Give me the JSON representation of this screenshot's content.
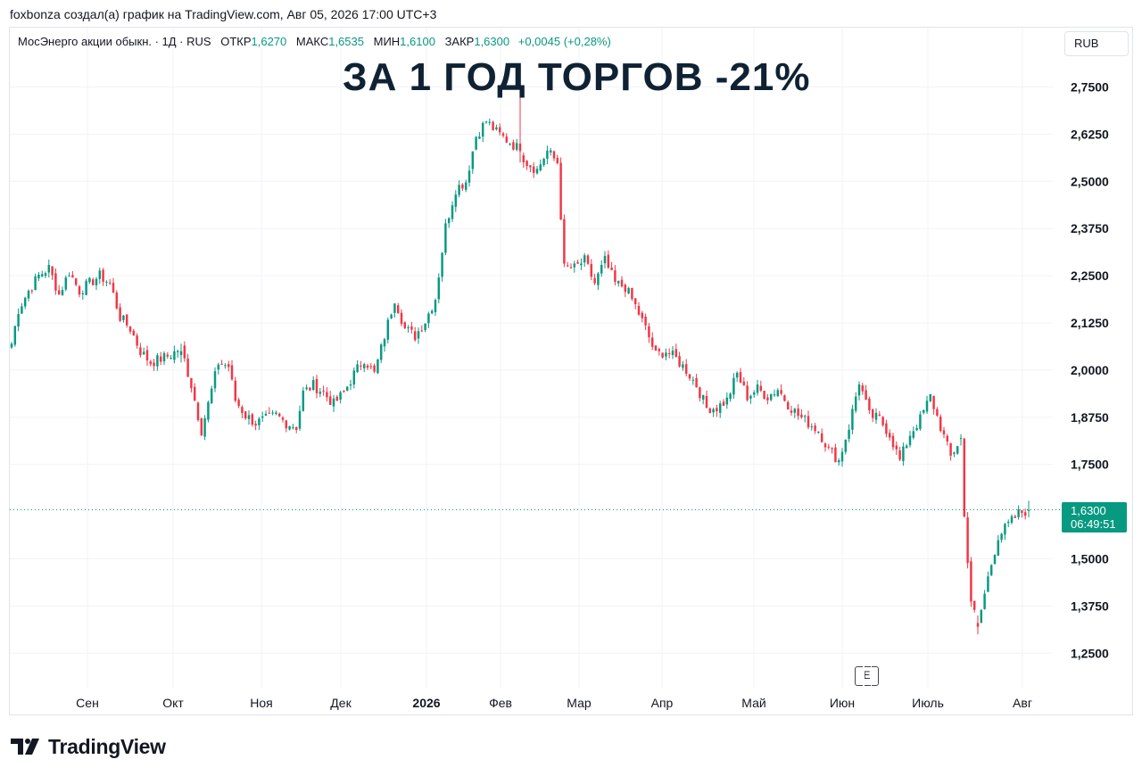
{
  "caption": "foxbonza создал(а) график на TradingView.com, Авг 05, 2026 17:00 UTC+3",
  "legend": {
    "symbol": "МосЭнерго акции обыкн. · 1Д · RUS",
    "open_label": "ОТКР",
    "open": "1,6270",
    "high_label": "МАКС",
    "high": "1,6535",
    "low_label": "МИН",
    "low": "1,6100",
    "close_label": "ЗАКР",
    "close": "1,6300",
    "change": "+0,0045 (+0,28%)"
  },
  "currency": "RUB",
  "headline": "ЗА 1 ГОД ТОРГОВ -21%",
  "price_badge": {
    "price": "1,6300",
    "countdown": "06:49:51"
  },
  "event_marker": "E",
  "logo_text": "TradingView",
  "colors": {
    "up": "#089981",
    "down": "#f23645",
    "grid": "#f0f3fa",
    "headline": "#0f2233"
  },
  "chart_data": {
    "type": "candlestick",
    "title": "ЗА 1 ГОД ТОРГОВ -21%",
    "ylim": [
      1.21,
      2.83
    ],
    "y_ticks": [
      "2,7500",
      "2,6250",
      "2,5000",
      "2,3750",
      "2,2500",
      "2,1250",
      "2,0000",
      "1,8750",
      "1,7500",
      "1,5000",
      "1,3750",
      "1,2500"
    ],
    "x_ticks": [
      {
        "label": "Сен",
        "bold": false
      },
      {
        "label": "Окт",
        "bold": false
      },
      {
        "label": "Ноя",
        "bold": false
      },
      {
        "label": "Дек",
        "bold": false
      },
      {
        "label": "2026",
        "bold": true
      },
      {
        "label": "Фев",
        "bold": false
      },
      {
        "label": "Мар",
        "bold": false
      },
      {
        "label": "Апр",
        "bold": false
      },
      {
        "label": "Май",
        "bold": false
      },
      {
        "label": "Июн",
        "bold": false
      },
      {
        "label": "Июль",
        "bold": false
      },
      {
        "label": "Авг",
        "bold": false
      }
    ],
    "last_price": 1.63,
    "grid": true,
    "series_anchors": [
      [
        0,
        2.07
      ],
      [
        2,
        2.16
      ],
      [
        5,
        2.21
      ],
      [
        8,
        2.25
      ],
      [
        11,
        2.27
      ],
      [
        14,
        2.2
      ],
      [
        17,
        2.26
      ],
      [
        20,
        2.21
      ],
      [
        23,
        2.23
      ],
      [
        26,
        2.25
      ],
      [
        29,
        2.23
      ],
      [
        32,
        2.14
      ],
      [
        35,
        2.11
      ],
      [
        38,
        2.05
      ],
      [
        41,
        2.02
      ],
      [
        44,
        2.03
      ],
      [
        47,
        2.04
      ],
      [
        50,
        2.06
      ],
      [
        53,
        1.96
      ],
      [
        56,
        1.84
      ],
      [
        58,
        1.91
      ],
      [
        61,
        2.02
      ],
      [
        64,
        2.01
      ],
      [
        66,
        1.92
      ],
      [
        69,
        1.88
      ],
      [
        72,
        1.86
      ],
      [
        75,
        1.87
      ],
      [
        78,
        1.88
      ],
      [
        81,
        1.86
      ],
      [
        84,
        1.85
      ],
      [
        86,
        1.94
      ],
      [
        89,
        1.96
      ],
      [
        92,
        1.94
      ],
      [
        95,
        1.91
      ],
      [
        98,
        1.94
      ],
      [
        101,
        1.99
      ],
      [
        104,
        2.03
      ],
      [
        107,
        1.99
      ],
      [
        110,
        2.09
      ],
      [
        113,
        2.19
      ],
      [
        116,
        2.11
      ],
      [
        119,
        2.09
      ],
      [
        122,
        2.13
      ],
      [
        125,
        2.19
      ],
      [
        128,
        2.38
      ],
      [
        131,
        2.48
      ],
      [
        134,
        2.5
      ],
      [
        137,
        2.62
      ],
      [
        140,
        2.66
      ],
      [
        143,
        2.63
      ],
      [
        146,
        2.61
      ],
      [
        149,
        2.59
      ],
      [
        152,
        2.55
      ],
      [
        155,
        2.53
      ],
      [
        158,
        2.58
      ],
      [
        161,
        2.55
      ],
      [
        163,
        2.27
      ],
      [
        166,
        2.27
      ],
      [
        169,
        2.29
      ],
      [
        172,
        2.23
      ],
      [
        175,
        2.29
      ],
      [
        178,
        2.23
      ],
      [
        181,
        2.22
      ],
      [
        184,
        2.17
      ],
      [
        187,
        2.11
      ],
      [
        190,
        2.04
      ],
      [
        193,
        2.05
      ],
      [
        196,
        2.03
      ],
      [
        199,
        2.0
      ],
      [
        202,
        1.96
      ],
      [
        205,
        1.9
      ],
      [
        208,
        1.9
      ],
      [
        211,
        1.92
      ],
      [
        214,
        1.99
      ],
      [
        217,
        1.93
      ],
      [
        220,
        1.95
      ],
      [
        223,
        1.93
      ],
      [
        226,
        1.95
      ],
      [
        229,
        1.91
      ],
      [
        232,
        1.88
      ],
      [
        235,
        1.86
      ],
      [
        238,
        1.84
      ],
      [
        241,
        1.79
      ],
      [
        244,
        1.76
      ],
      [
        247,
        1.85
      ],
      [
        250,
        1.97
      ],
      [
        253,
        1.88
      ],
      [
        256,
        1.87
      ],
      [
        259,
        1.83
      ],
      [
        262,
        1.76
      ],
      [
        265,
        1.83
      ],
      [
        268,
        1.87
      ],
      [
        271,
        1.93
      ],
      [
        274,
        1.85
      ],
      [
        277,
        1.77
      ],
      [
        280,
        1.82
      ],
      [
        281,
        1.61
      ],
      [
        283,
        1.39
      ],
      [
        285,
        1.32
      ],
      [
        288,
        1.45
      ],
      [
        291,
        1.56
      ],
      [
        294,
        1.59
      ],
      [
        297,
        1.62
      ],
      [
        300,
        1.63
      ]
    ],
    "candles": [
      {
        "x": 50,
        "o": 2.04,
        "h": 2.07,
        "l": 2.02,
        "c": 2.05
      },
      {
        "x": 150,
        "o": 2.6,
        "h": 2.74,
        "l": 2.55,
        "c": 2.58
      },
      {
        "x": 280,
        "o": 1.82,
        "h": 1.83,
        "l": 1.8,
        "c": 1.82
      },
      {
        "x": 285,
        "o": 1.33,
        "h": 1.35,
        "l": 1.3,
        "c": 1.32
      },
      {
        "x": 300,
        "o": 1.627,
        "h": 1.6535,
        "l": 1.61,
        "c": 1.63
      }
    ]
  }
}
